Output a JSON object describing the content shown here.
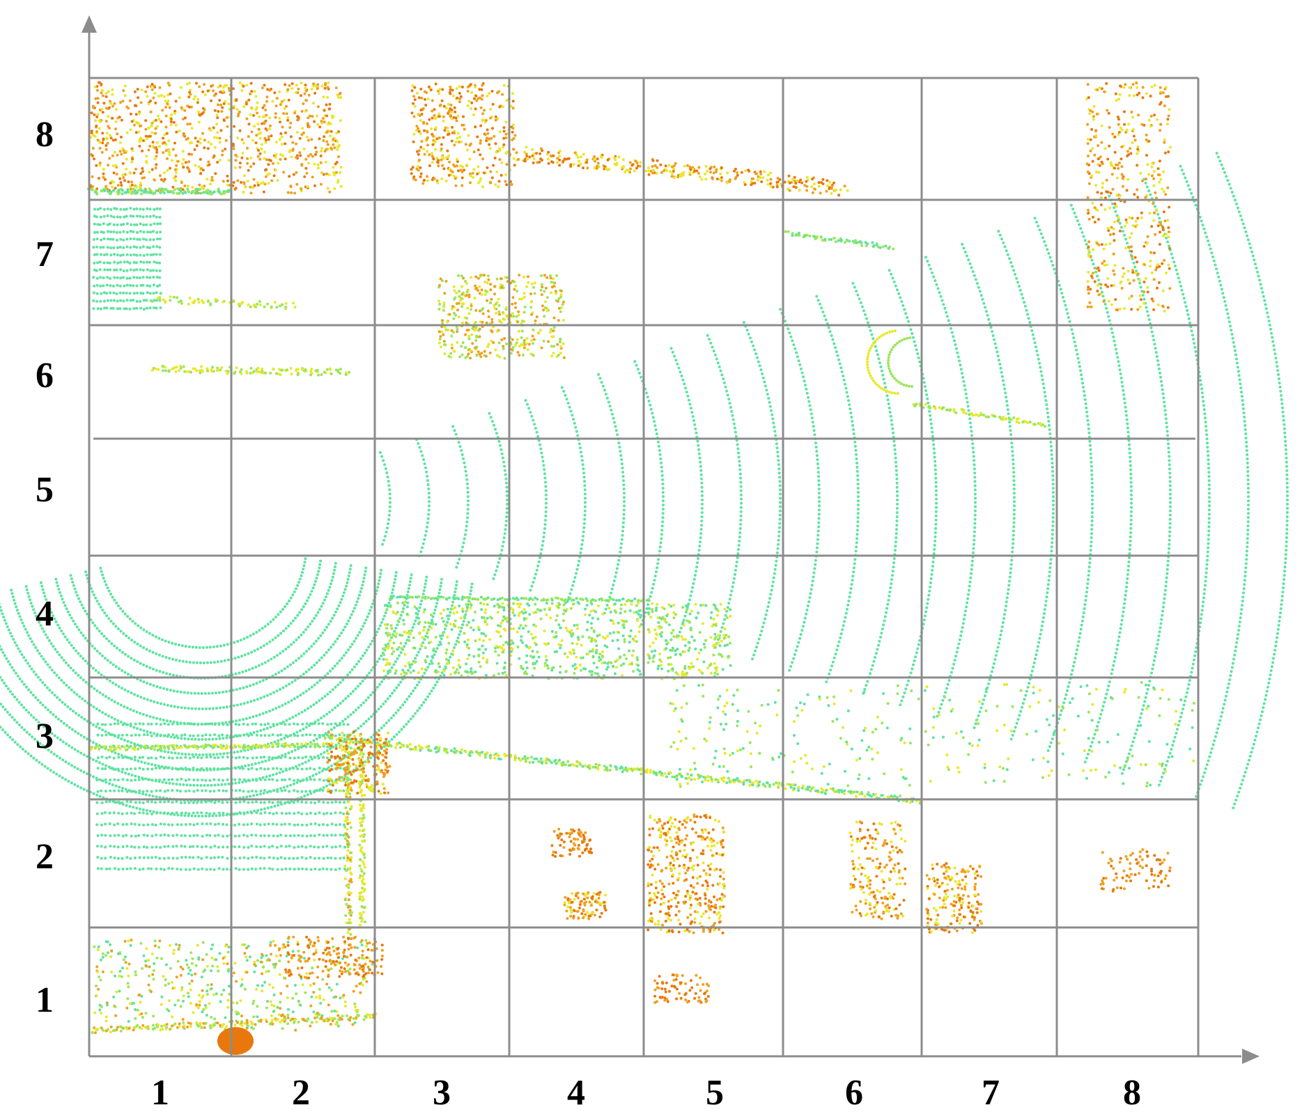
{
  "figure": {
    "x_ticks": [
      "1",
      "2",
      "3",
      "4",
      "5",
      "6",
      "7",
      "8"
    ],
    "y_ticks": [
      "1",
      "2",
      "3",
      "4",
      "5",
      "6",
      "7",
      "8"
    ],
    "grid": true,
    "colors": {
      "grid": "#8c8c8c",
      "axis": "#8c8c8c",
      "ground": "#5ee3a0",
      "low": "#9be65a",
      "mid": "#e8e82a",
      "high": "#f0a020",
      "top": "#e8780e"
    }
  },
  "chart_data": {
    "type": "scatter",
    "title": "",
    "xlabel": "",
    "ylabel": "",
    "x_categories": [
      "1",
      "2",
      "3",
      "4",
      "5",
      "6",
      "7",
      "8"
    ],
    "y_categories": [
      "1",
      "2",
      "3",
      "4",
      "5",
      "6",
      "7",
      "8"
    ],
    "grid": true
  }
}
